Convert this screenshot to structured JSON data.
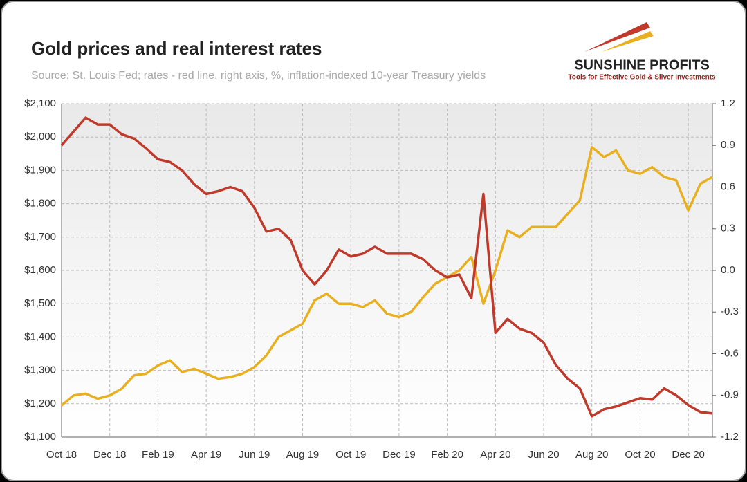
{
  "chart_data": {
    "type": "line",
    "title": "Gold prices and real interest rates",
    "subtitle": "Source: St. Louis Fed; rates - red line, right axis, %, inflation-indexed 10-year Treasury yields",
    "logo": {
      "name": "SUNSHINE PROFITS",
      "tagline": "Tools for Effective Gold & Silver Investments"
    },
    "categories": [
      "Oct 18",
      null,
      null,
      null,
      "Dec 18",
      null,
      null,
      null,
      "Feb 19",
      null,
      null,
      null,
      "Apr 19",
      null,
      null,
      null,
      "Jun 19",
      null,
      null,
      null,
      "Aug 19",
      null,
      null,
      null,
      "Oct 19",
      null,
      null,
      null,
      "Dec 19",
      null,
      null,
      null,
      "Feb 20",
      null,
      null,
      null,
      "Apr 20",
      null,
      null,
      null,
      "Jun 20",
      null,
      null,
      null,
      "Aug 20",
      null,
      null,
      null,
      "Oct 20",
      null,
      null,
      null,
      "Dec 20",
      null,
      null
    ],
    "series": [
      {
        "color": "#e8b020",
        "values": [
          1195,
          1225,
          1230,
          1215,
          1225,
          1245,
          1285,
          1290,
          1315,
          1330,
          1295,
          1305,
          1290,
          1275,
          1280,
          1290,
          1310,
          1345,
          1400,
          1420,
          1440,
          1510,
          1530,
          1500,
          1500,
          1490,
          1510,
          1470,
          1460,
          1475,
          1520,
          1560,
          1580,
          1600,
          1640,
          1500,
          1600,
          1720,
          1700,
          1730,
          1730,
          1730,
          1770,
          1810,
          1970,
          1940,
          1960,
          1900,
          1890,
          1910,
          1880,
          1870,
          1780,
          1860,
          1880
        ]
      },
      {
        "color": "#c0392b",
        "axis": "y2",
        "values": [
          0.9,
          1.0,
          1.1,
          1.05,
          1.05,
          0.98,
          0.95,
          0.88,
          0.8,
          0.78,
          0.72,
          0.62,
          0.55,
          0.57,
          0.6,
          0.57,
          0.45,
          0.28,
          0.3,
          0.22,
          0.0,
          -0.1,
          0.0,
          0.15,
          0.1,
          0.12,
          0.17,
          0.12,
          0.12,
          0.12,
          0.08,
          0.0,
          -0.05,
          -0.03,
          -0.2,
          0.55,
          -0.45,
          -0.35,
          -0.42,
          -0.45,
          -0.52,
          -0.68,
          -0.78,
          -0.85,
          -1.05,
          -1.0,
          -0.98,
          -0.95,
          -0.92,
          -0.93,
          -0.85,
          -0.9,
          -0.97,
          -1.02,
          -1.03
        ]
      }
    ],
    "ylim": [
      1100,
      2100
    ],
    "yticks": [
      {
        "value": 1100,
        "label": "$1,100"
      },
      {
        "value": 1200,
        "label": "$1,200"
      },
      {
        "value": 1300,
        "label": "$1,300"
      },
      {
        "value": 1400,
        "label": "$1,400"
      },
      {
        "value": 1500,
        "label": "$1,500"
      },
      {
        "value": 1600,
        "label": "$1,600"
      },
      {
        "value": 1700,
        "label": "$1,700"
      },
      {
        "value": 1800,
        "label": "$1,800"
      },
      {
        "value": 1900,
        "label": "$1,900"
      },
      {
        "value": 2000,
        "label": "$2,000"
      },
      {
        "value": 2100,
        "label": "$2,100"
      }
    ],
    "y2lim": [
      -1.2,
      1.2
    ],
    "y2ticks": [
      -1.2,
      -0.9,
      -0.6,
      -0.3,
      {
        "value": 0,
        "label": "0.0"
      },
      0.3,
      0.6,
      0.9,
      1.2
    ],
    "grid": true
  }
}
